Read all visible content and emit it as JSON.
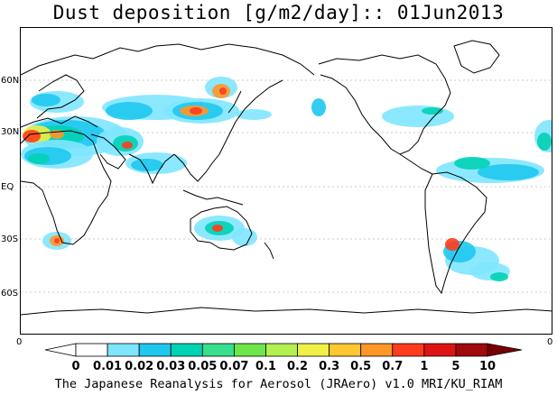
{
  "title": "Dust deposition [g/m2/day]:: 01Jun2013",
  "footer": "The Japanese Reanalysis for Aerosol (JRAero) v1.0 MRI/KU_RIAM",
  "lat_labels": [
    "60N",
    "30N",
    "EQ",
    "30S",
    "60S"
  ],
  "corner_left": "0",
  "corner_right": "0",
  "colorbar": {
    "levels": [
      "0",
      "0.01",
      "0.02",
      "0.03",
      "0.05",
      "0.07",
      "0.1",
      "0.2",
      "0.3",
      "0.5",
      "0.7",
      "1",
      "5",
      "10"
    ],
    "colors": [
      "#ffffff",
      "#ffffff",
      "#7fe5ff",
      "#1ec8f0",
      "#00d2b4",
      "#36e08c",
      "#6ee64b",
      "#b4f050",
      "#f0f046",
      "#ffc832",
      "#ff9628",
      "#ff3c1e",
      "#dc1414",
      "#a00a0a",
      "#780000"
    ]
  },
  "colors": {
    "light": "#7fe5ff",
    "cyan": "#1ec8f0",
    "teal": "#00d2b4",
    "green": "#36e08c",
    "lime": "#b4f050",
    "yellow": "#f0f046",
    "orange": "#ff9628",
    "red": "#ff3c1e",
    "darkred": "#a00a0a"
  }
}
